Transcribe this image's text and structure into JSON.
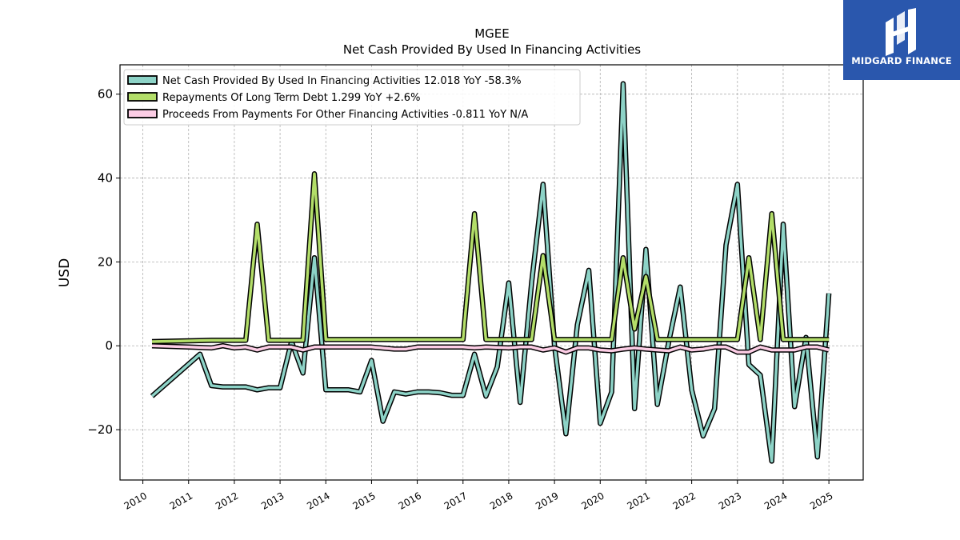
{
  "chart_data": {
    "type": "line",
    "title": "MGEE",
    "subtitle": "Net Cash Provided By Used In Financing Activities",
    "ylabel": "USD",
    "xlabel": "",
    "xlim": [
      2009.5,
      2025.75
    ],
    "ylim": [
      -32,
      67
    ],
    "x_ticks": [
      2010,
      2011,
      2012,
      2013,
      2014,
      2015,
      2016,
      2017,
      2018,
      2019,
      2020,
      2021,
      2022,
      2023,
      2024,
      2025
    ],
    "y_ticks": [
      -20,
      0,
      20,
      40,
      60
    ],
    "y_tick_labels": [
      "−20",
      "0",
      "20",
      "40",
      "60"
    ],
    "grid": true,
    "legend_position": "top-left",
    "series": [
      {
        "name": "Net Cash Provided By Used In Financing Activities",
        "legend": "Net Cash Provided By Used In Financing Activities  12.018 YoY -58.3%",
        "color": "#8dd3c7",
        "x": [
          2010.2,
          2011.25,
          2011.5,
          2011.75,
          2012.0,
          2012.25,
          2012.5,
          2012.75,
          2013.0,
          2013.25,
          2013.5,
          2013.75,
          2014.0,
          2014.25,
          2014.5,
          2014.75,
          2015.0,
          2015.25,
          2015.5,
          2015.75,
          2016.0,
          2016.25,
          2016.5,
          2016.75,
          2017.0,
          2017.25,
          2017.5,
          2017.75,
          2018.0,
          2018.25,
          2018.5,
          2018.75,
          2019.0,
          2019.25,
          2019.5,
          2019.75,
          2020.0,
          2020.25,
          2020.5,
          2020.75,
          2021.0,
          2021.25,
          2021.5,
          2021.75,
          2022.0,
          2022.25,
          2022.5,
          2022.75,
          2023.0,
          2023.25,
          2023.5,
          2023.75,
          2024.0,
          2024.25,
          2024.5,
          2024.75,
          2025.0
        ],
        "values": [
          -12,
          -2,
          -9.5,
          -9.8,
          -9.8,
          -9.8,
          -10.5,
          -10,
          -10,
          1,
          -6.5,
          21,
          -10.5,
          -10.5,
          -10.5,
          -11,
          -3.5,
          -18,
          -11,
          -11.5,
          -11,
          -11,
          -11.2,
          -11.8,
          -11.8,
          -2,
          -12,
          -5,
          15,
          -13.5,
          15,
          38.5,
          0,
          -21,
          5,
          18,
          -18.5,
          -11,
          62.5,
          -15,
          23,
          -14,
          1,
          14,
          -10.5,
          -21.5,
          -15,
          24,
          38.5,
          -4.5,
          -7,
          -27.5,
          29,
          -14.5,
          2,
          -26.5,
          12.5
        ]
      },
      {
        "name": "Repayments Of Long Term Debt",
        "legend": "Repayments Of Long Term Debt  1.299 YoY +2.6%",
        "color": "#b3de69",
        "x": [
          2010.2,
          2011.5,
          2012.0,
          2012.25,
          2012.5,
          2012.75,
          2013.0,
          2013.25,
          2013.5,
          2013.75,
          2014.0,
          2014.25,
          2014.5,
          2014.75,
          2015.0,
          2015.25,
          2015.5,
          2015.75,
          2016.0,
          2016.25,
          2016.5,
          2016.75,
          2017.0,
          2017.25,
          2017.5,
          2017.75,
          2018.0,
          2018.25,
          2018.5,
          2018.75,
          2019.0,
          2019.25,
          2019.5,
          2019.75,
          2020.0,
          2020.25,
          2020.5,
          2020.75,
          2021.0,
          2021.25,
          2021.5,
          2021.75,
          2022.0,
          2022.25,
          2022.5,
          2022.75,
          2023.0,
          2023.25,
          2023.5,
          2023.75,
          2024.0,
          2024.25,
          2024.5,
          2024.75,
          2025.0
        ],
        "values": [
          1,
          1.3,
          1.3,
          1.3,
          29,
          1.3,
          1.3,
          1.3,
          1.3,
          41,
          1.5,
          1.5,
          1.5,
          1.5,
          1.5,
          1.5,
          1.5,
          1.5,
          1.5,
          1.5,
          1.5,
          1.5,
          1.5,
          31.5,
          1.5,
          1.5,
          1.5,
          1.5,
          1.5,
          21.5,
          1.5,
          1.5,
          1.5,
          1.5,
          1.5,
          1.5,
          21,
          4,
          16.5,
          1.5,
          1.5,
          1.5,
          1.5,
          1.5,
          1.5,
          1.5,
          1.5,
          21,
          1.5,
          31.5,
          1.5,
          1.5,
          1.5,
          1.5,
          1.5
        ]
      },
      {
        "name": "Proceeds From Payments For Other Financing Activities",
        "legend": "Proceeds From Payments For Other Financing Activities  -0.811 YoY N/A",
        "color": "#fccde5",
        "x": [
          2010.2,
          2011.0,
          2011.5,
          2011.75,
          2012.0,
          2012.25,
          2012.5,
          2012.75,
          2013.0,
          2013.25,
          2013.5,
          2013.75,
          2014.0,
          2014.5,
          2015.0,
          2015.5,
          2015.75,
          2016.0,
          2016.5,
          2017.0,
          2017.25,
          2017.5,
          2018.0,
          2018.25,
          2018.5,
          2018.75,
          2019.0,
          2019.25,
          2019.5,
          2019.75,
          2020.0,
          2020.25,
          2020.5,
          2020.75,
          2021.0,
          2021.25,
          2021.5,
          2021.75,
          2022.0,
          2022.25,
          2022.5,
          2022.75,
          2023.0,
          2023.25,
          2023.5,
          2023.75,
          2024.0,
          2024.25,
          2024.5,
          2024.75,
          2025.0
        ],
        "values": [
          0,
          -0.3,
          -0.5,
          0,
          -0.5,
          -0.3,
          -1,
          -0.3,
          -0.3,
          -0.3,
          -1,
          -0.3,
          -0.3,
          -0.3,
          -0.3,
          -0.8,
          -0.8,
          -0.3,
          -0.3,
          -0.3,
          -0.5,
          -0.3,
          -0.5,
          -0.3,
          -0.3,
          -1,
          -0.5,
          -1.5,
          -0.5,
          -0.5,
          -1,
          -1.2,
          -0.8,
          -0.5,
          -0.8,
          -1,
          -1.2,
          -0.3,
          -1,
          -0.8,
          -0.3,
          -0.3,
          -1.5,
          -1.5,
          -0.3,
          -1,
          -1,
          -1,
          -0.3,
          -0.3,
          -1
        ]
      }
    ]
  },
  "logo": {
    "text": "MIDGARD FINANCE",
    "icon": "midgard-logo-icon",
    "color": "#2a57ad"
  }
}
